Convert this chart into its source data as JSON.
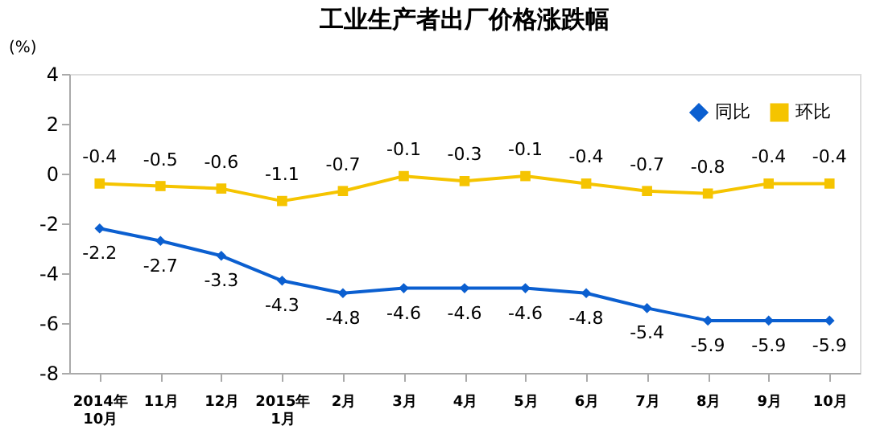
{
  "chart_data": {
    "type": "line",
    "title": "工业生产者出厂价格涨跌幅",
    "ylabel": "(%)",
    "categories": [
      "2014年\n10月",
      "11月",
      "12月",
      "2015年\n1月",
      "2月",
      "3月",
      "4月",
      "5月",
      "6月",
      "7月",
      "8月",
      "9月",
      "10月"
    ],
    "series": [
      {
        "name": "同比",
        "color": "#0b5fd0",
        "marker": "diamond",
        "values": [
          -2.2,
          -2.7,
          -3.3,
          -4.3,
          -4.8,
          -4.6,
          -4.6,
          -4.6,
          -4.8,
          -5.4,
          -5.9,
          -5.9,
          -5.9
        ]
      },
      {
        "name": "环比",
        "color": "#f5c400",
        "marker": "square",
        "values": [
          -0.4,
          -0.5,
          -0.6,
          -1.1,
          -0.7,
          -0.1,
          -0.3,
          -0.1,
          -0.4,
          -0.7,
          -0.8,
          -0.4,
          -0.4
        ]
      }
    ],
    "ylim": [
      -8,
      4
    ],
    "yticks": [
      -8,
      -6,
      -4,
      -2,
      0,
      2,
      4
    ],
    "grid": false,
    "legend": "top right",
    "data_labels": true,
    "line_style": "solid"
  }
}
